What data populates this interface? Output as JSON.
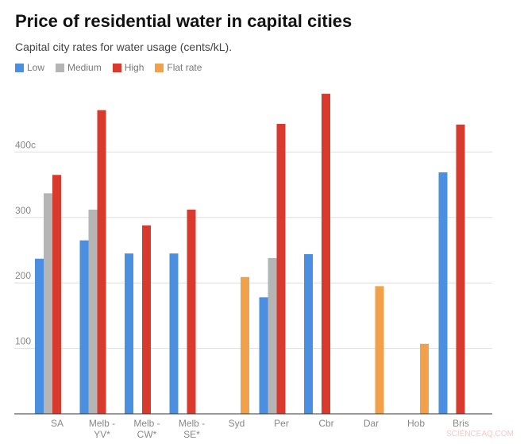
{
  "chart_data": {
    "type": "bar",
    "title": "Price of residential water in capital cities",
    "subtitle": "Capital city rates for water usage (cents/kL).",
    "categories": [
      [
        "SA"
      ],
      [
        "Melb -",
        "YV*"
      ],
      [
        "Melb -",
        "CW*"
      ],
      [
        "Melb -",
        "SE*"
      ],
      [
        "Syd"
      ],
      [
        "Per"
      ],
      [
        "Cbr"
      ],
      [
        "Dar"
      ],
      [
        "Hob"
      ],
      [
        "Bris"
      ]
    ],
    "series": [
      {
        "name": "Low",
        "color": "#4a8fe0",
        "values": [
          237,
          265,
          245,
          245,
          null,
          178,
          244,
          null,
          null,
          369
        ]
      },
      {
        "name": "Medium",
        "color": "#b5b5b5",
        "values": [
          337,
          312,
          null,
          null,
          null,
          238,
          null,
          null,
          null,
          null
        ]
      },
      {
        "name": "High",
        "color": "#d93a2e",
        "values": [
          365,
          464,
          288,
          312,
          null,
          443,
          489,
          null,
          null,
          442
        ]
      },
      {
        "name": "Flat rate",
        "color": "#f0a14a",
        "values": [
          null,
          null,
          null,
          null,
          209,
          null,
          null,
          195,
          107,
          null
        ]
      }
    ],
    "yticks": [
      {
        "value": 100,
        "label": "100"
      },
      {
        "value": 200,
        "label": "200"
      },
      {
        "value": 300,
        "label": "300"
      },
      {
        "value": 400,
        "label": "400c"
      }
    ],
    "ylim": [
      0,
      500
    ],
    "grid": true,
    "legend": "top-left"
  },
  "watermark": "SCIENCEAQ.COM"
}
